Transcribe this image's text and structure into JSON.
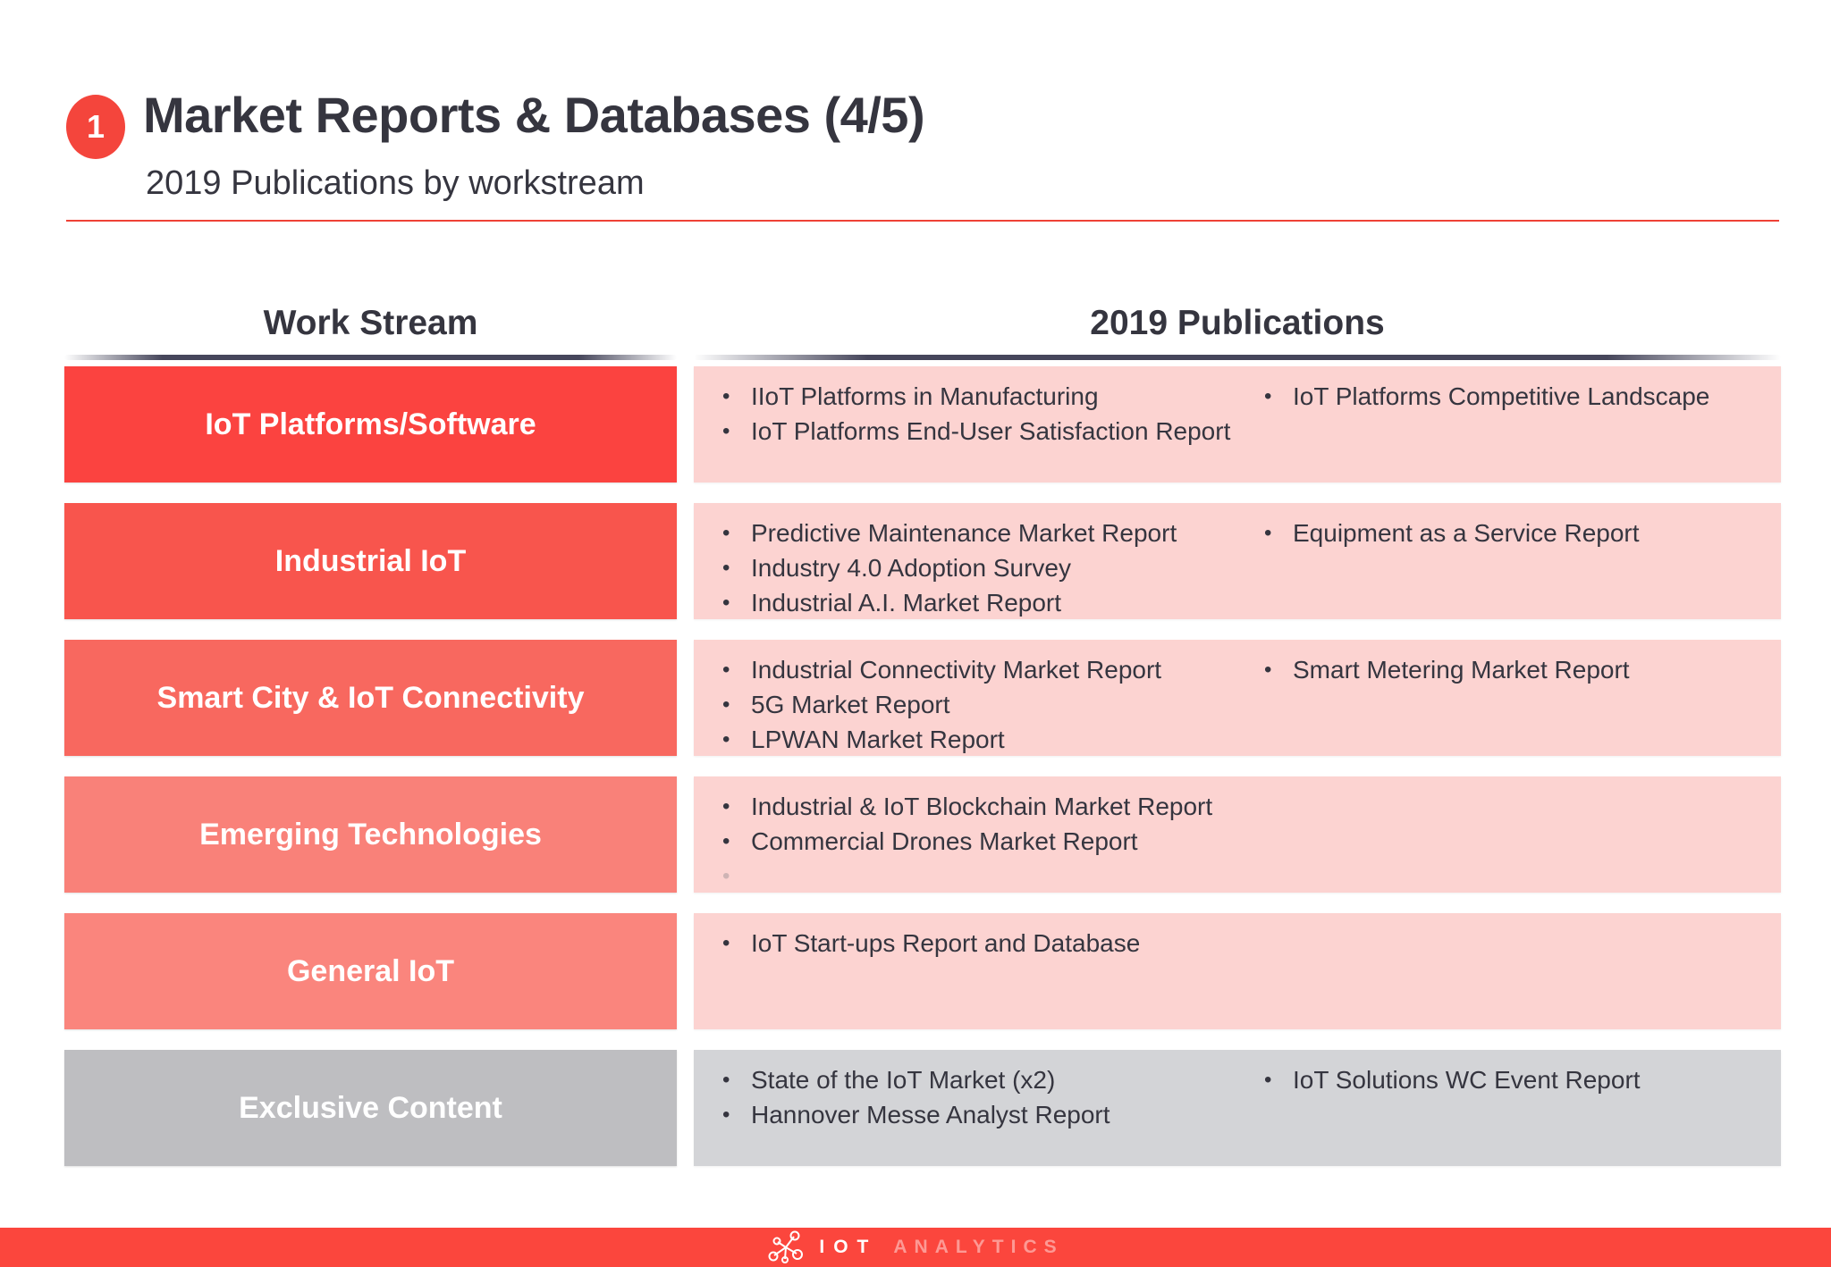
{
  "slide": {
    "badge": "1",
    "title": "Market Reports & Databases (4/5)",
    "subtitle": "2019 Publications by workstream",
    "accent_color": "#ef4136",
    "text_color": "#35353f"
  },
  "table": {
    "headers": {
      "workstream": "Work Stream",
      "publications": "2019 Publications"
    },
    "rows": [
      {
        "workstream": "IoT Platforms/Software",
        "label_color": "#fb4340",
        "content_color": "#fcd3d1",
        "publications_col1": [
          "IIoT Platforms in Manufacturing",
          "IoT Platforms End-User Satisfaction Report"
        ],
        "publications_col2": [
          "IoT Platforms Competitive Landscape"
        ],
        "has_faint_extra_bullet": false
      },
      {
        "workstream": "Industrial IoT",
        "label_color": "#f8554d",
        "content_color": "#fcd3d1",
        "publications_col1": [
          "Predictive Maintenance Market Report",
          "Industry 4.0 Adoption Survey",
          "Industrial A.I. Market Report"
        ],
        "publications_col2": [
          "Equipment as a Service Report"
        ],
        "has_faint_extra_bullet": false
      },
      {
        "workstream": "Smart City & IoT Connectivity",
        "label_color": "#f8685f",
        "content_color": "#fcd3d1",
        "publications_col1": [
          "Industrial Connectivity Market Report",
          "5G Market Report",
          "LPWAN Market Report"
        ],
        "publications_col2": [
          "Smart Metering Market Report"
        ],
        "has_faint_extra_bullet": false
      },
      {
        "workstream": "Emerging Technologies",
        "label_color": "#f98179",
        "content_color": "#fcd3d1",
        "publications_col1": [
          "Industrial & IoT Blockchain Market Report",
          "Commercial Drones Market Report"
        ],
        "publications_col2": [],
        "has_faint_extra_bullet": true
      },
      {
        "workstream": "General IoT",
        "label_color": "#fa857d",
        "content_color": "#fcd3d1",
        "publications_col1": [
          "IoT Start-ups Report and Database"
        ],
        "publications_col2": [],
        "has_faint_extra_bullet": false
      },
      {
        "workstream": "Exclusive Content",
        "label_color": "#bebec1",
        "content_color": "#d3d4d7",
        "publications_col1": [
          "State of the IoT Market (x2)",
          "Hannover Messe Analyst Report"
        ],
        "publications_col2": [
          "IoT Solutions WC Event Report"
        ],
        "has_faint_extra_bullet": false
      }
    ]
  },
  "footer": {
    "brand_primary": "IOT",
    "brand_secondary": "ANALYTICS",
    "bar_color": "#fb463d"
  }
}
